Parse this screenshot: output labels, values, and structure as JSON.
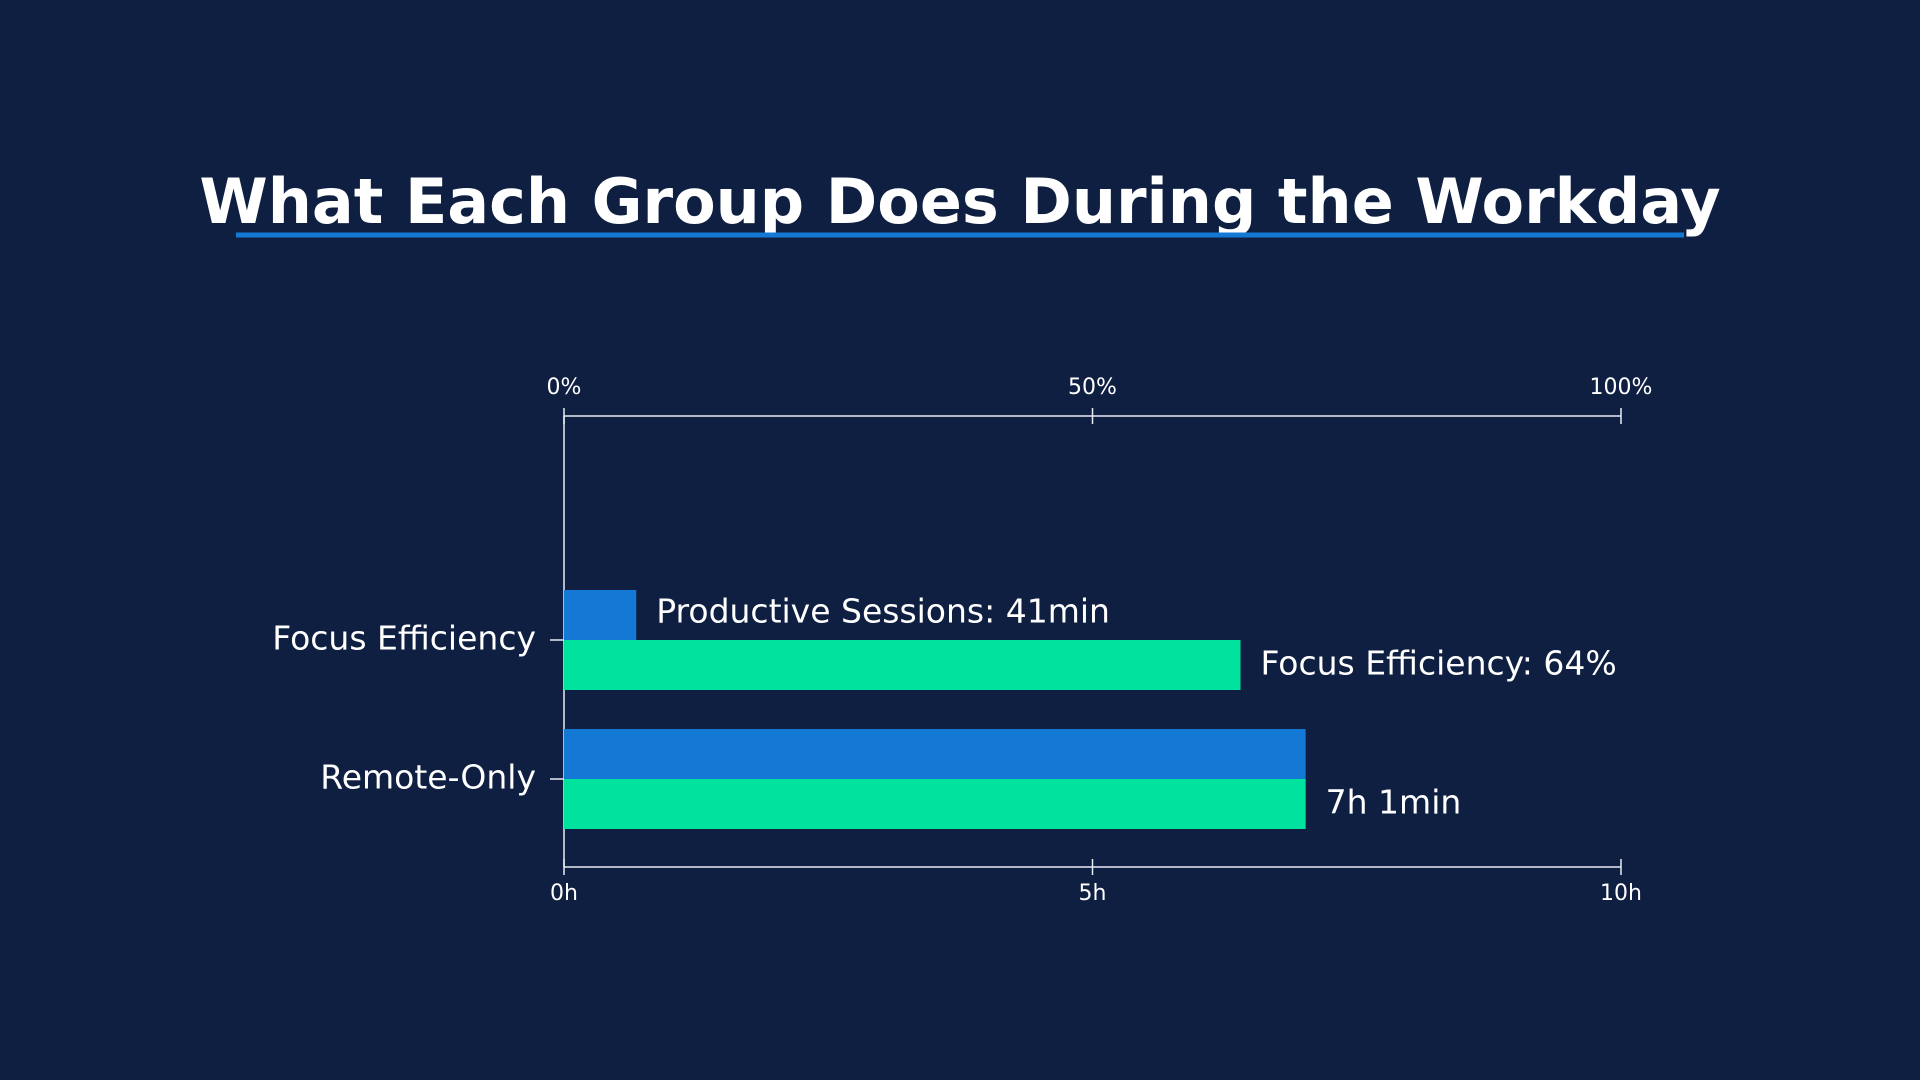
{
  "chart_data": {
    "type": "bar",
    "orientation": "horizontal",
    "title": "What Each Group Does During the Workday",
    "categories": [
      "Focus Efficiency",
      "Remote-Only"
    ],
    "series": [
      {
        "color": "#1479d4",
        "values": [
          0.6833,
          7.0167
        ],
        "axes": [
          "x",
          "x"
        ],
        "value_labels": [
          "Productive Sessions: 41min",
          null
        ]
      },
      {
        "color": "#00e39e",
        "values": [
          64,
          7.0167
        ],
        "axes": [
          "x2",
          "x"
        ],
        "value_labels": [
          "Focus Efficiency: 64%",
          "7h 1min"
        ]
      }
    ],
    "xlim": [
      0,
      10
    ],
    "xticks": [
      {
        "value": 0,
        "label": "0h"
      },
      {
        "value": 5,
        "label": "5h"
      },
      {
        "value": 10,
        "label": "10h"
      }
    ],
    "x2lim": [
      0,
      100
    ],
    "x2ticks": [
      {
        "value": 0,
        "label": "0%"
      },
      {
        "value": 50,
        "label": "50%"
      },
      {
        "value": 100,
        "label": "100%"
      }
    ],
    "background": "#0f1f42",
    "title_underline_color": "#1479d4"
  }
}
